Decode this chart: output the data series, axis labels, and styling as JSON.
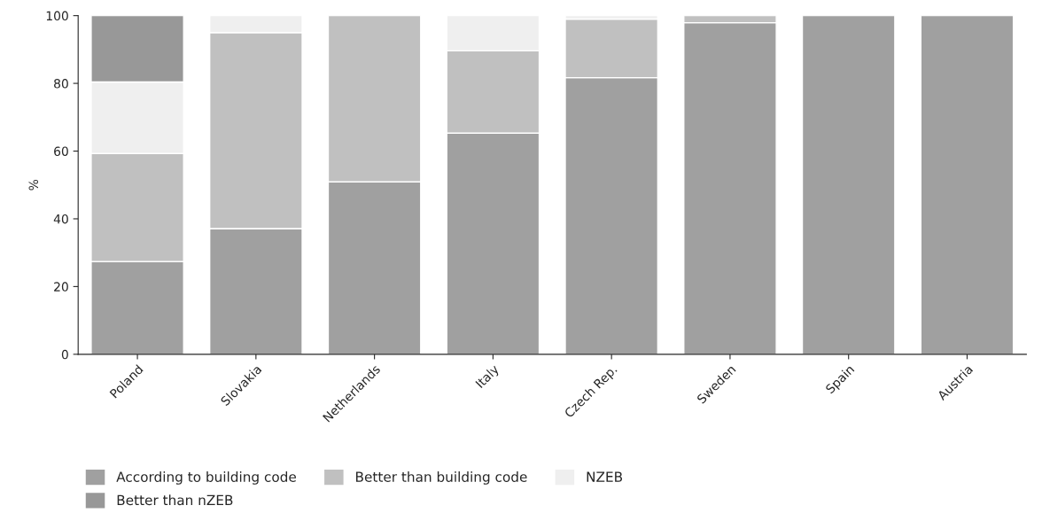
{
  "chart_data": {
    "type": "bar",
    "ylabel": "%",
    "stacked": true,
    "categories": [
      "Poland",
      "Slovakia",
      "Netherlands",
      "Italy",
      "Czech Rep.",
      "Sweden",
      "Spain",
      "Austria"
    ],
    "series": [
      {
        "name": "According to building code",
        "color": "#a0a0a0",
        "values": [
          27.4,
          37.1,
          50.9,
          65.3,
          81.7,
          97.9,
          100,
          100
        ]
      },
      {
        "name": "Better than building code",
        "color": "#c0c0c0",
        "values": [
          31.9,
          57.9,
          49.1,
          24.3,
          17.3,
          2.1,
          0,
          0
        ]
      },
      {
        "name": "NZEB",
        "color": "#efefef",
        "values": [
          21.1,
          5.0,
          0,
          10.4,
          1.0,
          0,
          0,
          0
        ]
      },
      {
        "name": "Better than nZEB",
        "color": "#989898",
        "values": [
          19.6,
          0,
          0,
          0,
          0,
          0,
          0,
          0
        ]
      }
    ],
    "ylim": [
      0,
      100
    ],
    "yticks": [
      0,
      20,
      40,
      60,
      80,
      100
    ],
    "grid": false,
    "legend": "bottom"
  }
}
